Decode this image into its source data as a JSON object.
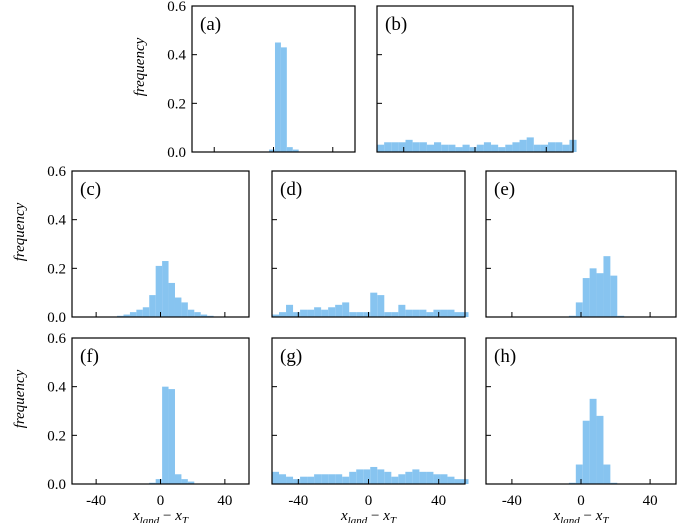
{
  "bar_color": "#87c4f0",
  "ylabel": "frequency",
  "xlabel_main": "x",
  "xlabel_sub1": "land",
  "xlabel_minus": " − ",
  "xlabel_sub2": "T",
  "ytick_labels": [
    "0.0",
    "0.2",
    "0.4",
    "0.6"
  ],
  "xtick_labels": [
    "-40",
    "0",
    "40"
  ],
  "chart_data": [
    {
      "type": "bar",
      "panel": "(a)",
      "xlim": [
        -55,
        55
      ],
      "ylim": [
        0,
        0.6
      ],
      "bin_start": -55,
      "bin_width": 4,
      "values": [
        0,
        0,
        0,
        0,
        0,
        0,
        0,
        0,
        0,
        0,
        0,
        0,
        0,
        0.01,
        0.45,
        0.43,
        0.02,
        0.01,
        0,
        0,
        0,
        0,
        0,
        0,
        0,
        0,
        0,
        0
      ],
      "ylabel": "frequency"
    },
    {
      "type": "bar",
      "panel": "(b)",
      "xlim": [
        -55,
        55
      ],
      "ylim": [
        0,
        0.6
      ],
      "bin_start": -55,
      "bin_width": 4,
      "values": [
        0.03,
        0.04,
        0.04,
        0.04,
        0.05,
        0.04,
        0.04,
        0.03,
        0.04,
        0.03,
        0.03,
        0.02,
        0.03,
        0.02,
        0.03,
        0.04,
        0.03,
        0.02,
        0.03,
        0.04,
        0.05,
        0.06,
        0.03,
        0.03,
        0.04,
        0.04,
        0.03,
        0.05
      ]
    },
    {
      "type": "bar",
      "panel": "(c)",
      "xlim": [
        -55,
        55
      ],
      "ylim": [
        0,
        0.6
      ],
      "bin_start": -55,
      "bin_width": 4,
      "values": [
        0,
        0,
        0,
        0,
        0,
        0,
        0,
        0.005,
        0.01,
        0.02,
        0.03,
        0.04,
        0.09,
        0.21,
        0.23,
        0.14,
        0.08,
        0.06,
        0.03,
        0.02,
        0.01,
        0.005,
        0,
        0,
        0,
        0,
        0,
        0
      ],
      "ylabel": "frequency"
    },
    {
      "type": "bar",
      "panel": "(d)",
      "xlim": [
        -55,
        55
      ],
      "ylim": [
        0,
        0.6
      ],
      "bin_start": -55,
      "bin_width": 4,
      "values": [
        0.01,
        0.02,
        0.05,
        0.02,
        0.03,
        0.03,
        0.04,
        0.03,
        0.04,
        0.05,
        0.06,
        0.02,
        0.02,
        0.02,
        0.1,
        0.09,
        0.02,
        0.02,
        0.05,
        0.03,
        0.03,
        0.03,
        0.02,
        0.03,
        0.03,
        0.03,
        0.02,
        0.02
      ]
    },
    {
      "type": "bar",
      "panel": "(e)",
      "xlim": [
        -55,
        55
      ],
      "ylim": [
        0,
        0.6
      ],
      "bin_start": -55,
      "bin_width": 4,
      "values": [
        0,
        0,
        0,
        0,
        0,
        0,
        0,
        0,
        0,
        0,
        0,
        0,
        0.005,
        0.06,
        0.16,
        0.2,
        0.18,
        0.25,
        0.17,
        0.005,
        0,
        0,
        0,
        0,
        0,
        0,
        0,
        0
      ]
    },
    {
      "type": "bar",
      "panel": "(f)",
      "xlim": [
        -55,
        55
      ],
      "ylim": [
        0,
        0.6
      ],
      "bin_start": -55,
      "bin_width": 4,
      "values": [
        0,
        0,
        0,
        0,
        0,
        0,
        0,
        0,
        0,
        0,
        0,
        0,
        0.005,
        0.02,
        0.4,
        0.39,
        0.04,
        0.02,
        0.01,
        0,
        0,
        0,
        0,
        0,
        0,
        0,
        0,
        0
      ],
      "ylabel": "frequency"
    },
    {
      "type": "bar",
      "panel": "(g)",
      "xlim": [
        -55,
        55
      ],
      "ylim": [
        0,
        0.6
      ],
      "bin_start": -55,
      "bin_width": 4,
      "values": [
        0.05,
        0.04,
        0.03,
        0.02,
        0.03,
        0.03,
        0.04,
        0.04,
        0.04,
        0.04,
        0.03,
        0.05,
        0.06,
        0.06,
        0.07,
        0.06,
        0.05,
        0.03,
        0.04,
        0.05,
        0.06,
        0.05,
        0.05,
        0.04,
        0.04,
        0.03,
        0.02,
        0.02
      ],
      "xlabel": "x_land − x_T"
    },
    {
      "type": "bar",
      "panel": "(h)",
      "xlim": [
        -55,
        55
      ],
      "ylim": [
        0,
        0.6
      ],
      "bin_start": -55,
      "bin_width": 4,
      "values": [
        0,
        0,
        0,
        0,
        0,
        0,
        0,
        0,
        0,
        0,
        0,
        0,
        0.005,
        0.08,
        0.26,
        0.35,
        0.28,
        0.08,
        0.005,
        0,
        0,
        0,
        0,
        0,
        0,
        0,
        0,
        0
      ],
      "xlabel": "x_land − x_T"
    }
  ]
}
